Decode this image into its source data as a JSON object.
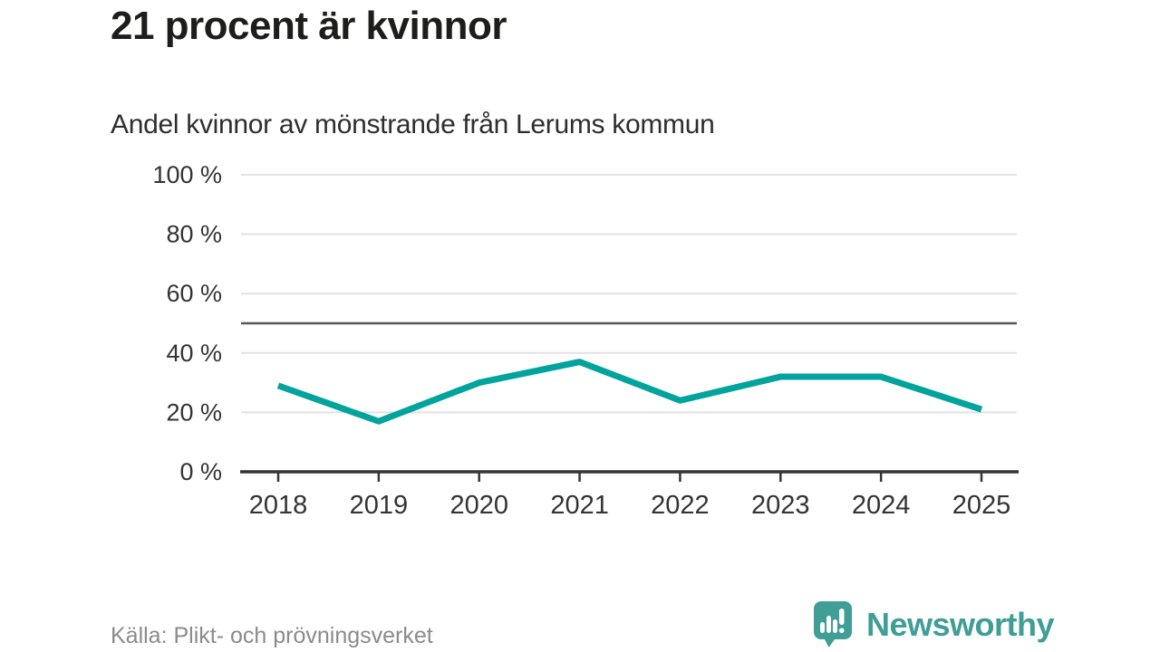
{
  "header": {
    "title": "21 procent är kvinnor",
    "subtitle": "Andel kvinnor av mönstrande från Lerums kommun"
  },
  "footer": {
    "source": "Källa: Plikt- och prövningsverket",
    "brand_name": "Newsworthy"
  },
  "colors": {
    "line": "#00a49c",
    "grid": "#e2e2e2",
    "reference": "#585858",
    "axis": "#343434",
    "tick_text": "#333333",
    "title_text": "#1d1d1b",
    "source_text": "#8b8b8b",
    "brand": "#3f9e96"
  },
  "chart_data": {
    "type": "line",
    "x": [
      2018,
      2019,
      2020,
      2021,
      2022,
      2023,
      2024,
      2025
    ],
    "series": [
      {
        "name": "Andel kvinnor av mönstrande",
        "values": [
          29,
          17,
          30,
          37,
          24,
          32,
          32,
          21
        ]
      }
    ],
    "title": "21 procent är kvinnor",
    "subtitle": "Andel kvinnor av mönstrande från Lerums kommun",
    "xlabel": "",
    "ylabel": "",
    "ylim": [
      0,
      100
    ],
    "yticks": [
      0,
      20,
      40,
      60,
      80,
      100
    ],
    "ytick_suffix": " %",
    "reference_line": 50,
    "grid": true,
    "legend": false
  }
}
